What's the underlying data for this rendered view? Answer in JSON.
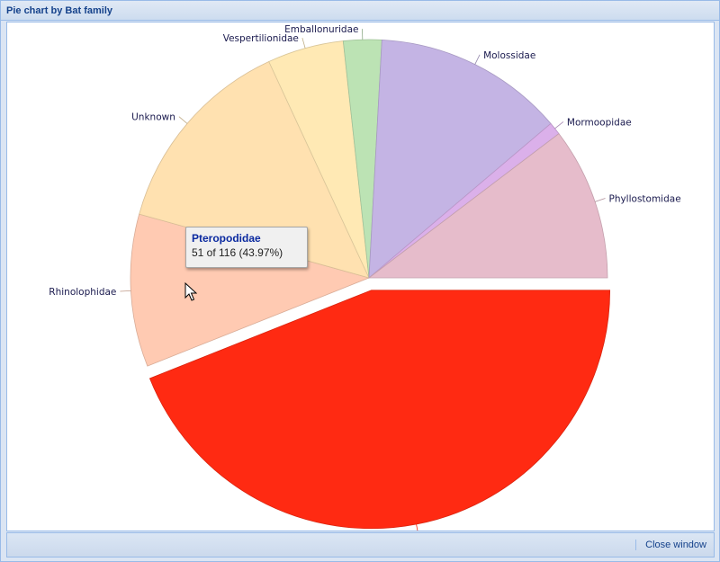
{
  "window": {
    "title": "Pie chart by Bat family",
    "close_label": "Close window"
  },
  "tooltip": {
    "title": "Pteropodidae",
    "detail": "51 of 116 (43.97%)"
  },
  "chart_data": {
    "type": "pie",
    "total": 116,
    "exploded": "Pteropodidae",
    "slices": [
      {
        "label": "Pteropodidae",
        "value": 51,
        "color": "#ff2a12"
      },
      {
        "label": "Rhinolophidae",
        "value": 12,
        "color": "#ffcab2"
      },
      {
        "label": "Unknown",
        "value": 16,
        "color": "#ffe1b0"
      },
      {
        "label": "Vespertilionidae",
        "value": 6,
        "color": "#ffe9b4"
      },
      {
        "label": "Emballonuridae",
        "value": 3,
        "color": "#bce3b4"
      },
      {
        "label": "Molossidae",
        "value": 15,
        "color": "#c4b4e4"
      },
      {
        "label": "Mormoopidae",
        "value": 1,
        "color": "#dbb0ea"
      },
      {
        "label": "Phyllostomidae",
        "value": 12,
        "color": "#e6bccb"
      }
    ]
  }
}
